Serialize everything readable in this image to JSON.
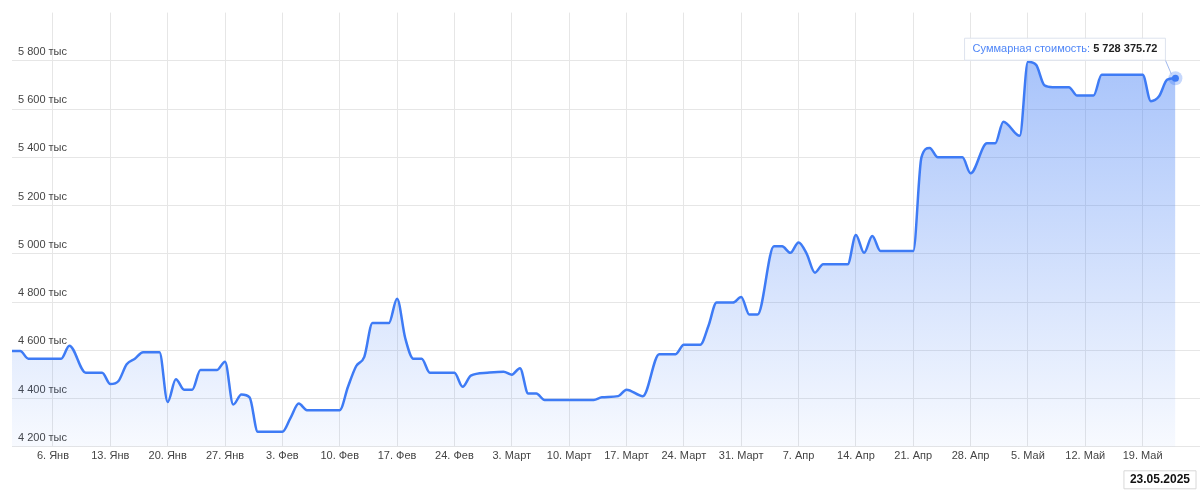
{
  "chart_data": {
    "type": "area",
    "x": [
      "2025-01-01",
      "2025-01-02",
      "2025-01-03",
      "2025-01-07",
      "2025-01-08",
      "2025-01-10",
      "2025-01-12",
      "2025-01-13",
      "2025-01-14",
      "2025-01-15",
      "2025-01-16",
      "2025-01-17",
      "2025-01-19",
      "2025-01-20",
      "2025-01-21",
      "2025-01-22",
      "2025-01-23",
      "2025-01-24",
      "2025-01-26",
      "2025-01-27",
      "2025-01-28",
      "2025-01-29",
      "2025-01-30",
      "2025-01-31",
      "2025-02-03",
      "2025-02-04",
      "2025-02-05",
      "2025-02-06",
      "2025-02-10",
      "2025-02-11",
      "2025-02-12",
      "2025-02-13",
      "2025-02-14",
      "2025-02-16",
      "2025-02-17",
      "2025-02-18",
      "2025-02-19",
      "2025-02-20",
      "2025-02-21",
      "2025-02-24",
      "2025-02-25",
      "2025-02-26",
      "2025-02-28",
      "2025-03-02",
      "2025-03-03",
      "2025-03-04",
      "2025-03-05",
      "2025-03-06",
      "2025-03-07",
      "2025-03-13",
      "2025-03-14",
      "2025-03-16",
      "2025-03-17",
      "2025-03-19",
      "2025-03-21",
      "2025-03-23",
      "2025-03-24",
      "2025-03-26",
      "2025-03-27",
      "2025-03-28",
      "2025-03-30",
      "2025-03-31",
      "2025-04-01",
      "2025-04-02",
      "2025-04-04",
      "2025-04-05",
      "2025-04-06",
      "2025-04-07",
      "2025-04-08",
      "2025-04-09",
      "2025-04-10",
      "2025-04-13",
      "2025-04-14",
      "2025-04-15",
      "2025-04-16",
      "2025-04-17",
      "2025-04-21",
      "2025-04-22",
      "2025-04-23",
      "2025-04-24",
      "2025-04-27",
      "2025-04-28",
      "2025-04-30",
      "2025-05-01",
      "2025-05-02",
      "2025-05-04",
      "2025-05-05",
      "2025-05-06",
      "2025-05-07",
      "2025-05-08",
      "2025-05-10",
      "2025-05-11",
      "2025-05-13",
      "2025-05-14",
      "2025-05-19",
      "2025-05-20",
      "2025-05-21",
      "2025-05-22",
      "2025-05-23"
    ],
    "series": [
      {
        "color": "#3e7bf5",
        "values": [
          4597,
          4597,
          4565,
          4565,
          4619,
          4507,
          4507,
          4460,
          4473,
          4542,
          4565,
          4592,
          4592,
          4386,
          4480,
          4437,
          4437,
          4518,
          4518,
          4553,
          4375,
          4417,
          4405,
          4262,
          4262,
          4320,
          4379,
          4352,
          4352,
          4448,
          4534,
          4573,
          4713,
          4713,
          4814,
          4650,
          4565,
          4565,
          4507,
          4507,
          4449,
          4495,
          4507,
          4511,
          4499,
          4526,
          4421,
          4421,
          4394,
          4394,
          4405,
          4410,
          4437,
          4410,
          4584,
          4584,
          4623,
          4623,
          4701,
          4798,
          4798,
          4821,
          4748,
          4748,
          5031,
          5031,
          5004,
          5047,
          5000,
          4922,
          4957,
          4957,
          5078,
          5004,
          5074,
          5012,
          5012,
          5400,
          5439,
          5400,
          5400,
          5334,
          5458,
          5458,
          5548,
          5489,
          5796,
          5783,
          5699,
          5691,
          5691,
          5656,
          5656,
          5742,
          5742,
          5633,
          5653,
          5722,
          5728
        ]
      }
    ],
    "xlim": [
      "2025-01-01",
      "2025-05-26"
    ],
    "xticks": [
      {
        "value": "2025-01-06",
        "label": "6. Янв"
      },
      {
        "value": "2025-01-13",
        "label": "13. Янв"
      },
      {
        "value": "2025-01-20",
        "label": "20. Янв"
      },
      {
        "value": "2025-01-27",
        "label": "27. Янв"
      },
      {
        "value": "2025-02-03",
        "label": "3. Фев"
      },
      {
        "value": "2025-02-10",
        "label": "10. Фев"
      },
      {
        "value": "2025-02-17",
        "label": "17. Фев"
      },
      {
        "value": "2025-02-24",
        "label": "24. Фев"
      },
      {
        "value": "2025-03-03",
        "label": "3. Март"
      },
      {
        "value": "2025-03-10",
        "label": "10. Март"
      },
      {
        "value": "2025-03-17",
        "label": "17. Март"
      },
      {
        "value": "2025-03-24",
        "label": "24. Март"
      },
      {
        "value": "2025-03-31",
        "label": "31. Март"
      },
      {
        "value": "2025-04-07",
        "label": "7. Апр"
      },
      {
        "value": "2025-04-14",
        "label": "14. Апр"
      },
      {
        "value": "2025-04-21",
        "label": "21. Апр"
      },
      {
        "value": "2025-04-28",
        "label": "28. Апр"
      },
      {
        "value": "2025-05-05",
        "label": "5. Май"
      },
      {
        "value": "2025-05-12",
        "label": "12. Май"
      },
      {
        "value": "2025-05-19",
        "label": "19. Май"
      }
    ],
    "ylim": [
      4200,
      6000
    ],
    "yticks": [
      {
        "value": 4200,
        "label": "4 200 тыс"
      },
      {
        "value": 4400,
        "label": "4 400 тыс"
      },
      {
        "value": 4600,
        "label": "4 600 тыс"
      },
      {
        "value": 4800,
        "label": "4 800 тыс"
      },
      {
        "value": 5000,
        "label": "5 000 тыс"
      },
      {
        "value": 5200,
        "label": "5 200 тыс"
      },
      {
        "value": 5400,
        "label": "5 400 тыс"
      },
      {
        "value": 5600,
        "label": "5 600 тыс"
      },
      {
        "value": 5800,
        "label": "5 800 тыс"
      }
    ],
    "grid": true,
    "marker": "none",
    "annotations": [
      {
        "text": "Суммарная стоимость: 5 728 375.72",
        "x": "2025-05-23",
        "y": 5728
      },
      "23.05.2025"
    ]
  }
}
